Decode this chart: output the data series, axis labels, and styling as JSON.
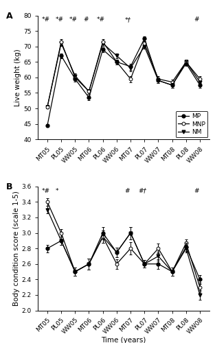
{
  "x_labels": [
    "MT05",
    "PL05",
    "WW05",
    "MT06",
    "PL06",
    "WW06",
    "MT07",
    "PL07",
    "WW07",
    "MT08",
    "PL08",
    "WW08"
  ],
  "panel_A": {
    "MP": [
      44.5,
      67.0,
      59.5,
      53.5,
      69.0,
      65.0,
      63.5,
      72.5,
      59.0,
      57.5,
      64.5,
      57.5
    ],
    "MNP": [
      50.5,
      71.5,
      60.0,
      55.5,
      71.5,
      65.0,
      59.5,
      71.0,
      59.5,
      58.5,
      65.0,
      59.5
    ],
    "NM": [
      50.5,
      71.0,
      60.5,
      55.5,
      71.0,
      67.0,
      63.0,
      70.0,
      59.0,
      57.5,
      65.0,
      58.5
    ],
    "MP_err": [
      0.5,
      0.8,
      0.8,
      0.8,
      0.8,
      0.8,
      1.0,
      0.8,
      0.8,
      0.8,
      0.8,
      0.8
    ],
    "MNP_err": [
      0.5,
      0.8,
      0.8,
      0.8,
      0.8,
      0.8,
      1.0,
      0.8,
      0.8,
      0.8,
      0.8,
      0.8
    ],
    "NM_err": [
      0.5,
      0.8,
      0.8,
      0.8,
      0.8,
      0.8,
      1.0,
      0.8,
      0.8,
      0.8,
      0.8,
      0.8
    ],
    "ylim": [
      40,
      80
    ],
    "yticks": [
      40,
      45,
      50,
      55,
      60,
      65,
      70,
      75,
      80
    ],
    "ylabel": "Live weight (kg)",
    "annotations": [
      {
        "text": "*#",
        "x": 0
      },
      {
        "text": "*#",
        "x": 1
      },
      {
        "text": "*#",
        "x": 2
      },
      {
        "text": "#",
        "x": 3
      },
      {
        "text": "*#",
        "x": 4
      },
      {
        "text": "*†",
        "x": 6
      },
      {
        "text": "#",
        "x": 11
      }
    ]
  },
  "panel_B": {
    "MP": [
      2.8,
      2.9,
      2.5,
      2.6,
      3.0,
      2.75,
      3.0,
      2.6,
      2.6,
      2.5,
      2.82,
      2.4
    ],
    "MNP": [
      3.4,
      3.0,
      2.5,
      2.6,
      2.95,
      2.6,
      2.8,
      2.6,
      2.8,
      2.5,
      2.87,
      2.3
    ],
    "NM": [
      3.3,
      2.9,
      2.5,
      2.6,
      2.95,
      2.75,
      3.0,
      2.6,
      2.7,
      2.5,
      2.8,
      2.2
    ],
    "MP_err": [
      0.05,
      0.05,
      0.05,
      0.07,
      0.08,
      0.06,
      0.08,
      0.05,
      0.06,
      0.05,
      0.05,
      0.06
    ],
    "MNP_err": [
      0.05,
      0.05,
      0.05,
      0.07,
      0.08,
      0.06,
      0.08,
      0.05,
      0.06,
      0.05,
      0.05,
      0.06
    ],
    "NM_err": [
      0.05,
      0.05,
      0.05,
      0.07,
      0.08,
      0.06,
      0.08,
      0.05,
      0.06,
      0.05,
      0.05,
      0.06
    ],
    "ylim": [
      2.0,
      3.6
    ],
    "yticks": [
      2.0,
      2.2,
      2.4,
      2.6,
      2.8,
      3.0,
      3.2,
      3.4,
      3.6
    ],
    "ylabel": "Body condition score (scale 1-5)",
    "annotations": [
      {
        "text": "*#",
        "x": 0
      },
      {
        "text": "*",
        "x": 1
      },
      {
        "text": "#",
        "x": 6
      },
      {
        "text": "#†",
        "x": 7
      },
      {
        "text": "#",
        "x": 11
      }
    ]
  },
  "linewidth": 0.9,
  "markersize": 3.5,
  "capsize": 1.5,
  "annotation_fontsize": 6.5,
  "tick_fontsize": 6.5,
  "label_fontsize": 7.5,
  "panel_label_fontsize": 9.0,
  "legend_fontsize": 6.5
}
